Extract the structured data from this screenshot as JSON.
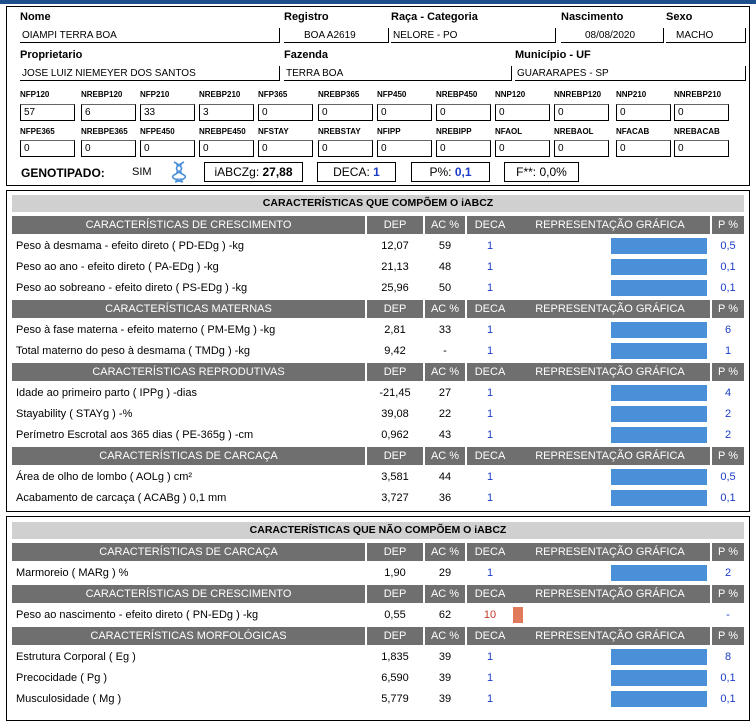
{
  "identification": {
    "nome_label": "Nome",
    "nome": "OIAMPI TERRA BOA",
    "registro_label": "Registro",
    "registro": "BOA A2619",
    "raca_label": "Raça - Categoria",
    "raca": "NELORE - PO",
    "nascimento_label": "Nascimento",
    "nascimento": "08/08/2020",
    "sexo_label": "Sexo",
    "sexo": "MACHO",
    "proprietario_label": "Proprietario",
    "proprietario": "JOSE LUIZ NIEMEYER DOS SANTOS",
    "fazenda_label": "Fazenda",
    "fazenda": "TERRA BOA",
    "municipio_label": "Município - UF",
    "municipio": "GUARARAPES - SP"
  },
  "data_fields_row1": [
    {
      "label": "NFP120",
      "value": "57"
    },
    {
      "label": "NREBP120",
      "value": "6"
    },
    {
      "label": "NFP210",
      "value": "33"
    },
    {
      "label": "NREBP210",
      "value": "3"
    },
    {
      "label": "NFP365",
      "value": "0"
    },
    {
      "label": "NREBP365",
      "value": "0"
    },
    {
      "label": "NFP450",
      "value": "0"
    },
    {
      "label": "NREBP450",
      "value": "0"
    },
    {
      "label": "NNP120",
      "value": "0"
    },
    {
      "label": "NNREBP120",
      "value": "0"
    },
    {
      "label": "NNP210",
      "value": "0"
    },
    {
      "label": "NNREBP210",
      "value": "0"
    }
  ],
  "data_fields_row2": [
    {
      "label": "NFPE365",
      "value": "0"
    },
    {
      "label": "NREBPE365",
      "value": "0"
    },
    {
      "label": "NFPE450",
      "value": "0"
    },
    {
      "label": "NREBPE450",
      "value": "0"
    },
    {
      "label": "NFSTAY",
      "value": "0"
    },
    {
      "label": "NREBSTAY",
      "value": "0"
    },
    {
      "label": "NFIPP",
      "value": "0"
    },
    {
      "label": "NREBIPP",
      "value": "0"
    },
    {
      "label": "NFAOL",
      "value": "0"
    },
    {
      "label": "NREBAOL",
      "value": "0"
    },
    {
      "label": "NFACAB",
      "value": "0"
    },
    {
      "label": "NREBACAB",
      "value": "0"
    }
  ],
  "genotipado": {
    "label": "GENOTIPADO:",
    "value": "SIM",
    "icon": "dna-icon",
    "iabczg_label": "iABCZg:",
    "iabczg_value": "27,88",
    "deca_label": "DECA:",
    "deca_value": "1",
    "p_label": "P%:",
    "p_value": "0,1",
    "f_label": "F**:",
    "f_value": "0,0%"
  },
  "column_headers": {
    "dep": "DEP",
    "ac": "AC %",
    "deca": "DECA",
    "rep": "REPRESENTAÇÃO GRÁFICA",
    "p": "P %"
  },
  "colors": {
    "bar_blue": "#4a90d9",
    "bar_orange": "#e07a5a",
    "header_gray": "#6f6f6f",
    "title_gray": "#d0d0d0",
    "value_blue": "#1a3cc8",
    "value_red": "#c0392b"
  },
  "table1": {
    "title": "CARACTERÍSTICAS QUE COMPÕEM O iABCZ",
    "sections": [
      {
        "name": "CARACTERÍSTICAS DE CRESCIMENTO",
        "rows": [
          {
            "trait": "Peso à desmama - efeito direto ( PD-EDg ) -kg",
            "dep": "12,07",
            "ac": "59",
            "deca": "1",
            "p": "0,5",
            "bar_fraction": 1.0,
            "bar_color": "blue"
          },
          {
            "trait": "Peso ao ano - efeito direto ( PA-EDg ) -kg",
            "dep": "21,13",
            "ac": "48",
            "deca": "1",
            "p": "0,1",
            "bar_fraction": 1.0,
            "bar_color": "blue"
          },
          {
            "trait": "Peso ao sobreano - efeito direto ( PS-EDg ) -kg",
            "dep": "25,96",
            "ac": "50",
            "deca": "1",
            "p": "0,1",
            "bar_fraction": 1.0,
            "bar_color": "blue"
          }
        ]
      },
      {
        "name": "CARACTERÍSTICAS MATERNAS",
        "rows": [
          {
            "trait": "Peso à fase materna - efeito materno ( PM-EMg ) -kg",
            "dep": "2,81",
            "ac": "33",
            "deca": "1",
            "p": "6",
            "bar_fraction": 1.0,
            "bar_color": "blue"
          },
          {
            "trait": "Total materno do peso à desmama ( TMDg ) -kg",
            "dep": "9,42",
            "ac": "-",
            "deca": "1",
            "p": "1",
            "bar_fraction": 1.0,
            "bar_color": "blue"
          }
        ]
      },
      {
        "name": "CARACTERÍSTICAS REPRODUTIVAS",
        "rows": [
          {
            "trait": "Idade ao primeiro parto ( IPPg ) -dias",
            "dep": "-21,45",
            "ac": "27",
            "deca": "1",
            "p": "4",
            "bar_fraction": 1.0,
            "bar_color": "blue"
          },
          {
            "trait": "Stayability ( STAYg ) -%",
            "dep": "39,08",
            "ac": "22",
            "deca": "1",
            "p": "2",
            "bar_fraction": 1.0,
            "bar_color": "blue"
          },
          {
            "trait": "Perímetro Escrotal aos 365 dias ( PE-365g ) -cm",
            "dep": "0,962",
            "ac": "43",
            "deca": "1",
            "p": "2",
            "bar_fraction": 1.0,
            "bar_color": "blue"
          }
        ]
      },
      {
        "name": "CARACTERÍSTICAS DE CARCAÇA",
        "rows": [
          {
            "trait": "Área de olho de lombo ( AOLg ) cm²",
            "dep": "3,581",
            "ac": "44",
            "deca": "1",
            "p": "0,5",
            "bar_fraction": 1.0,
            "bar_color": "blue"
          },
          {
            "trait": "Acabamento de carcaça ( ACABg ) 0,1 mm",
            "dep": "3,727",
            "ac": "36",
            "deca": "1",
            "p": "0,1",
            "bar_fraction": 1.0,
            "bar_color": "blue"
          }
        ]
      }
    ]
  },
  "table2": {
    "title": "CARACTERÍSTICAS QUE NÃO COMPÕEM O iABCZ",
    "sections": [
      {
        "name": "CARACTERÍSTICAS DE CARCAÇA",
        "rows": [
          {
            "trait": "Marmoreio ( MARg ) %",
            "dep": "1,90",
            "ac": "29",
            "deca": "1",
            "p": "2",
            "bar_fraction": 1.0,
            "bar_color": "blue"
          }
        ]
      },
      {
        "name": "CARACTERÍSTICAS DE CRESCIMENTO",
        "rows": [
          {
            "trait": "Peso ao nascimento - efeito direto ( PN-EDg ) -kg",
            "dep": "0,55",
            "ac": "62",
            "deca": "10",
            "p": "-",
            "bar_fraction": 0.1,
            "bar_color": "orange",
            "bar_side": "left"
          }
        ]
      },
      {
        "name": "CARACTERÍSTICAS MORFOLÓGICAS",
        "rows": [
          {
            "trait": "Estrutura Corporal ( Eg )",
            "dep": "1,835",
            "ac": "39",
            "deca": "1",
            "p": "8",
            "bar_fraction": 1.0,
            "bar_color": "blue"
          },
          {
            "trait": "Precocidade ( Pg )",
            "dep": "6,590",
            "ac": "39",
            "deca": "1",
            "p": "0,1",
            "bar_fraction": 1.0,
            "bar_color": "blue"
          },
          {
            "trait": "Musculosidade ( Mg )",
            "dep": "5,779",
            "ac": "39",
            "deca": "1",
            "p": "0,1",
            "bar_fraction": 1.0,
            "bar_color": "blue"
          }
        ]
      }
    ]
  }
}
